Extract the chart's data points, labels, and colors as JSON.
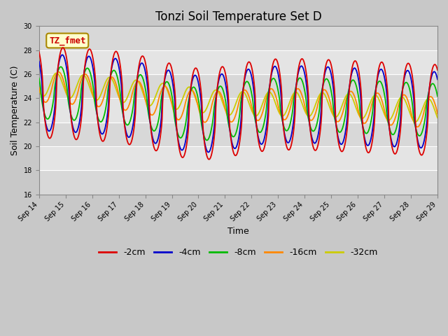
{
  "title": "Tonzi Soil Temperature Set D",
  "xlabel": "Time",
  "ylabel": "Soil Temperature (C)",
  "ylim": [
    16,
    30
  ],
  "yticks": [
    16,
    18,
    20,
    22,
    24,
    26,
    28,
    30
  ],
  "xtick_labels": [
    "Sep 14",
    "Sep 15",
    "Sep 16",
    "Sep 17",
    "Sep 18",
    "Sep 19",
    "Sep 20",
    "Sep 21",
    "Sep 22",
    "Sep 23",
    "Sep 24",
    "Sep 25",
    "Sep 26",
    "Sep 27",
    "Sep 28",
    "Sep 29"
  ],
  "annotation_text": "TZ_fmet",
  "annotation_color": "#cc0000",
  "annotation_bg": "#ffffcc",
  "line_colors": [
    "#dd0000",
    "#0000cc",
    "#00bb00",
    "#ff8800",
    "#cccc00"
  ],
  "line_labels": [
    "-2cm",
    "-4cm",
    "-8cm",
    "-16cm",
    "-32cm"
  ],
  "title_fontsize": 12,
  "axis_label_fontsize": 9,
  "band_colors": [
    "#d8d8d8",
    "#e4e4e4"
  ],
  "grid_color": "#ffffff"
}
